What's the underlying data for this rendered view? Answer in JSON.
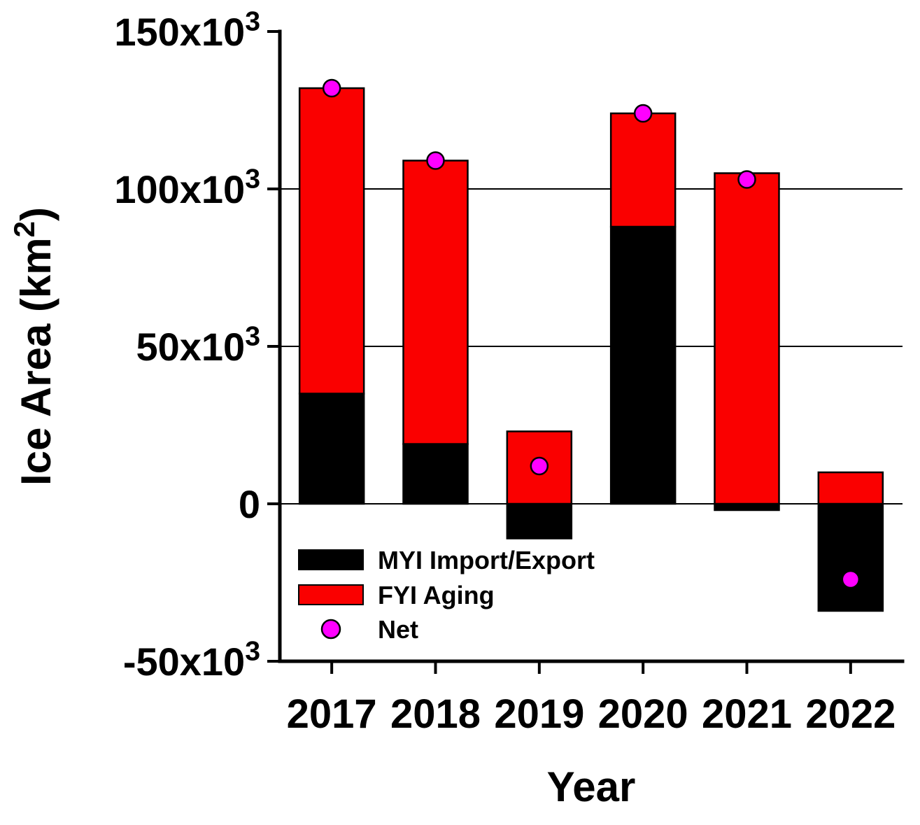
{
  "chart_data": {
    "type": "bar",
    "stacked": true,
    "title": "",
    "xlabel": "Year",
    "ylabel": "Ice Area (km^{2})",
    "categories": [
      "2017",
      "2018",
      "2019",
      "2020",
      "2021",
      "2022"
    ],
    "series": [
      {
        "name": "MYI Import/Export",
        "color": "#000000",
        "swatch": "rect",
        "values": [
          35000,
          19000,
          -11000,
          88000,
          -2000,
          -34000
        ]
      },
      {
        "name": "FYI Aging",
        "color": "#fa0000",
        "swatch": "rect",
        "values": [
          97000,
          90000,
          23000,
          36000,
          105000,
          10000
        ]
      }
    ],
    "net": {
      "name": "Net",
      "color": "#ff00ff",
      "swatch": "circle",
      "values": [
        132000,
        109000,
        12000,
        124000,
        103000,
        -24000
      ]
    },
    "ylim": [
      -50000,
      150000
    ],
    "yticks": [
      {
        "value": 150000,
        "label": "150x10^{3}"
      },
      {
        "value": 100000,
        "label": "100x10^{3}"
      },
      {
        "value": 50000,
        "label": "50x10^{3}"
      },
      {
        "value": 0,
        "label": "0"
      },
      {
        "value": -50000,
        "label": "-50x10^{3}"
      }
    ],
    "ygrid": [
      100000,
      50000,
      0
    ],
    "legend": {
      "position": "inside-bottom-left",
      "entries": [
        "MYI Import/Export",
        "FYI Aging",
        "Net"
      ]
    },
    "colors": {
      "axis": "#000000",
      "grid": "#000000",
      "background": "#ffffff",
      "marker_outline": "#000000"
    }
  }
}
